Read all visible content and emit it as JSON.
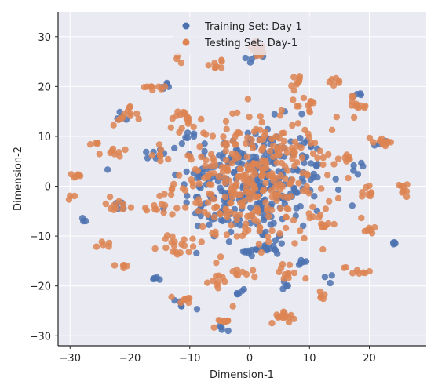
{
  "chart_data": {
    "type": "scatter",
    "title": "",
    "xlabel": "Dimension-1",
    "ylabel": "Dimension-2",
    "xlim": [
      -32,
      29.5
    ],
    "ylim": [
      -32,
      35
    ],
    "xticks": [
      -30,
      -20,
      -10,
      0,
      10,
      20
    ],
    "yticks": [
      -30,
      -20,
      -10,
      0,
      10,
      20,
      30
    ],
    "xtick_labels": [
      "−30",
      "−20",
      "−10",
      "0",
      "10",
      "20"
    ],
    "ytick_labels": [
      "−30",
      "−20",
      "−10",
      "0",
      "10",
      "20",
      "30"
    ],
    "grid": true,
    "legend_position": "top-center",
    "background": "#eaeaf2",
    "series": [
      {
        "name": "Training Set: Day-1",
        "color": "#4c72b0",
        "clusters": [
          {
            "x": 0.5,
            "y": 0.5,
            "sx": 6.0,
            "sy": 6.0,
            "n": 260
          },
          {
            "x": 3.0,
            "y": -12.5,
            "sx": 1.5,
            "sy": 1.0,
            "n": 14
          },
          {
            "x": 1.0,
            "y": -13.0,
            "sx": 1.0,
            "sy": 0.6,
            "n": 8
          },
          {
            "x": -6.0,
            "y": -5.5,
            "sx": 1.2,
            "sy": 1.2,
            "n": 8
          },
          {
            "x": -2.0,
            "y": 5.5,
            "sx": 1.2,
            "sy": 1.0,
            "n": 8
          },
          {
            "x": -28.0,
            "y": -7.0,
            "sx": 0.3,
            "sy": 0.3,
            "n": 3
          },
          {
            "x": -14.0,
            "y": 20.5,
            "sx": 0.6,
            "sy": 0.4,
            "n": 5
          },
          {
            "x": 18.0,
            "y": 18.0,
            "sx": 0.5,
            "sy": 0.5,
            "n": 4
          },
          {
            "x": 24.0,
            "y": -11.0,
            "sx": 0.4,
            "sy": 0.4,
            "n": 4
          },
          {
            "x": -21.0,
            "y": 14.0,
            "sx": 0.8,
            "sy": 0.6,
            "n": 6
          },
          {
            "x": -15.5,
            "y": -18.5,
            "sx": 0.6,
            "sy": 0.6,
            "n": 5
          },
          {
            "x": -12.0,
            "y": -24.0,
            "sx": 0.6,
            "sy": 0.6,
            "n": 4
          },
          {
            "x": 1.0,
            "y": 26.0,
            "sx": 0.8,
            "sy": 0.6,
            "n": 5
          },
          {
            "x": 6.5,
            "y": -20.0,
            "sx": 0.5,
            "sy": 0.5,
            "n": 4
          },
          {
            "x": -4.5,
            "y": -28.5,
            "sx": 0.6,
            "sy": 0.4,
            "n": 4
          },
          {
            "x": -16.0,
            "y": 6.5,
            "sx": 0.8,
            "sy": 0.6,
            "n": 5
          },
          {
            "x": 17.5,
            "y": 3.5,
            "sx": 0.6,
            "sy": 0.6,
            "n": 5
          },
          {
            "x": 10.0,
            "y": 5.0,
            "sx": 0.8,
            "sy": 0.8,
            "n": 6
          },
          {
            "x": -10.0,
            "y": 10.0,
            "sx": 0.8,
            "sy": 0.8,
            "n": 6
          },
          {
            "x": 8.5,
            "y": -15.5,
            "sx": 0.8,
            "sy": 0.5,
            "n": 5
          },
          {
            "x": -22.0,
            "y": -4.0,
            "sx": 0.5,
            "sy": 0.5,
            "n": 4
          },
          {
            "x": 22.0,
            "y": 8.5,
            "sx": 0.6,
            "sy": 0.4,
            "n": 4
          },
          {
            "x": -1.5,
            "y": -21.5,
            "sx": 0.8,
            "sy": 0.5,
            "n": 5
          },
          {
            "x": 13.0,
            "y": -18.0,
            "sx": 0.5,
            "sy": 0.5,
            "n": 3
          }
        ]
      },
      {
        "name": "Testing Set: Day-1",
        "color": "#dd8452",
        "clusters": [
          {
            "x": 0.5,
            "y": 1.0,
            "sx": 6.5,
            "sy": 6.5,
            "n": 340
          },
          {
            "x": 1.5,
            "y": 27.5,
            "sx": 1.0,
            "sy": 0.8,
            "n": 14
          },
          {
            "x": 5.5,
            "y": -26.0,
            "sx": 1.0,
            "sy": 0.7,
            "n": 14
          },
          {
            "x": -4.5,
            "y": -27.0,
            "sx": 0.7,
            "sy": 0.7,
            "n": 8
          },
          {
            "x": -5.0,
            "y": 24.5,
            "sx": 0.8,
            "sy": 0.5,
            "n": 8
          },
          {
            "x": 18.0,
            "y": 16.0,
            "sx": 0.8,
            "sy": 0.9,
            "n": 12
          },
          {
            "x": -21.0,
            "y": 14.0,
            "sx": 1.1,
            "sy": 0.8,
            "n": 12
          },
          {
            "x": -11.0,
            "y": 13.5,
            "sx": 1.3,
            "sy": 1.0,
            "n": 14
          },
          {
            "x": -11.5,
            "y": -12.0,
            "sx": 2.0,
            "sy": 1.2,
            "n": 18
          },
          {
            "x": -11.0,
            "y": -23.0,
            "sx": 0.8,
            "sy": 0.8,
            "n": 8
          },
          {
            "x": 22.0,
            "y": 9.0,
            "sx": 1.3,
            "sy": 0.5,
            "n": 12
          },
          {
            "x": 25.5,
            "y": 0.0,
            "sx": 0.8,
            "sy": 0.8,
            "n": 8
          },
          {
            "x": 18.0,
            "y": -17.0,
            "sx": 1.2,
            "sy": 0.6,
            "n": 8
          },
          {
            "x": 20.0,
            "y": -9.0,
            "sx": 1.0,
            "sy": 0.4,
            "n": 6
          },
          {
            "x": -23.0,
            "y": 7.0,
            "sx": 1.0,
            "sy": 0.5,
            "n": 8
          },
          {
            "x": -28.0,
            "y": 2.0,
            "sx": 1.2,
            "sy": 0.5,
            "n": 6
          },
          {
            "x": -22.5,
            "y": -3.5,
            "sx": 0.8,
            "sy": 1.2,
            "n": 8
          },
          {
            "x": -17.5,
            "y": -4.0,
            "sx": 1.5,
            "sy": 0.6,
            "n": 8
          },
          {
            "x": -16.0,
            "y": 20.0,
            "sx": 1.0,
            "sy": 0.5,
            "n": 8
          },
          {
            "x": 8.0,
            "y": 21.0,
            "sx": 0.8,
            "sy": 0.8,
            "n": 8
          },
          {
            "x": 14.5,
            "y": 21.0,
            "sx": 0.6,
            "sy": 0.6,
            "n": 6
          },
          {
            "x": 10.0,
            "y": 16.0,
            "sx": 1.2,
            "sy": 1.0,
            "n": 10
          },
          {
            "x": 5.5,
            "y": -17.0,
            "sx": 1.5,
            "sy": 0.9,
            "n": 10
          },
          {
            "x": 12.5,
            "y": -7.0,
            "sx": 1.5,
            "sy": 1.0,
            "n": 10
          },
          {
            "x": -2.5,
            "y": -18.0,
            "sx": 1.5,
            "sy": 0.8,
            "n": 10
          },
          {
            "x": -6.0,
            "y": -19.0,
            "sx": 0.8,
            "sy": 0.8,
            "n": 6
          },
          {
            "x": 12.0,
            "y": -22.0,
            "sx": 0.5,
            "sy": 0.5,
            "n": 5
          },
          {
            "x": -24.0,
            "y": -12.0,
            "sx": 0.6,
            "sy": 0.6,
            "n": 5
          },
          {
            "x": -21.0,
            "y": -16.0,
            "sx": 0.5,
            "sy": 0.5,
            "n": 5
          },
          {
            "x": -25.5,
            "y": 8.5,
            "sx": 0.4,
            "sy": 0.4,
            "n": 4
          },
          {
            "x": -12.0,
            "y": 25.5,
            "sx": 0.4,
            "sy": 0.4,
            "n": 3
          },
          {
            "x": -29.5,
            "y": -2.5,
            "sx": 0.4,
            "sy": 0.4,
            "n": 3
          },
          {
            "x": 15.5,
            "y": 5.5,
            "sx": 1.0,
            "sy": 0.8,
            "n": 8
          },
          {
            "x": 19.0,
            "y": -1.5,
            "sx": 1.0,
            "sy": 0.6,
            "n": 6
          },
          {
            "x": -14.0,
            "y": 6.5,
            "sx": 1.0,
            "sy": 0.6,
            "n": 6
          }
        ]
      }
    ]
  }
}
